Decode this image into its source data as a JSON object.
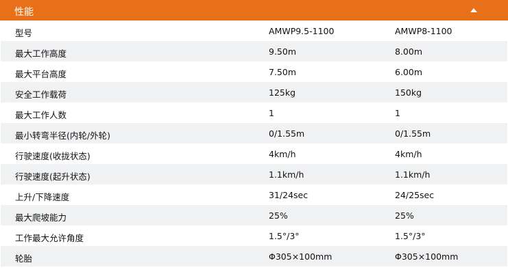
{
  "section": {
    "title": "性能",
    "toggle_icon": "triangle-up-icon",
    "accent": "#e77018"
  },
  "rows": [
    [
      "型号",
      "AMWP9.5-1100",
      "AMWP8-1100"
    ],
    [
      "最大工作高度",
      "9.50m",
      "8.00m"
    ],
    [
      "最大平台高度",
      "7.50m",
      "6.00m"
    ],
    [
      "安全工作载荷",
      "125kg",
      "150kg"
    ],
    [
      "最大工作人数",
      "1",
      "1"
    ],
    [
      "最小转弯半径(内轮/外轮)",
      "0/1.55m",
      "0/1.55m"
    ],
    [
      "行驶速度(收拢状态)",
      "4km/h",
      "4km/h"
    ],
    [
      "行驶速度(起升状态)",
      "1.1km/h",
      "1.1km/h"
    ],
    [
      "上升/下降速度",
      "31/24sec",
      "24/25sec"
    ],
    [
      "最大爬坡能力",
      "25%",
      "25%"
    ],
    [
      "工作最大允许角度",
      "1.5°/3°",
      "1.5°/3°"
    ],
    [
      "轮胎",
      "Φ305×100mm",
      "Φ305×100mm"
    ]
  ]
}
